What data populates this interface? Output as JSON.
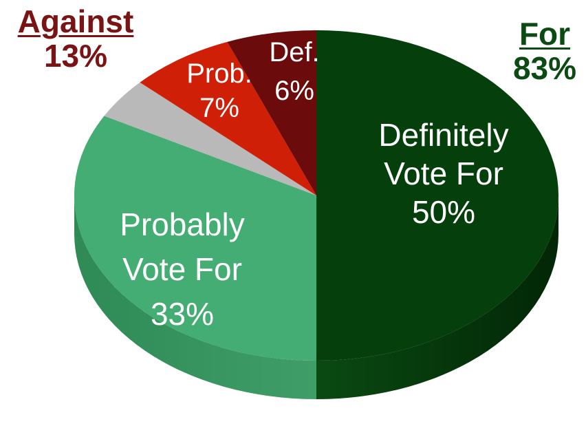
{
  "chart_data": {
    "type": "pie",
    "style": "3d",
    "slices": [
      {
        "key": "def_for",
        "label": [
          "Definitely",
          "Vote For"
        ],
        "value": 50,
        "value_label": "50%",
        "color": "#053f0b"
      },
      {
        "key": "prob_for",
        "label": [
          "Probably",
          "Vote For"
        ],
        "value": 33,
        "value_label": "33%",
        "color": "#44ad73"
      },
      {
        "key": "undecided",
        "label": [],
        "value": 4,
        "value_label": "",
        "color": "#b9b9b9"
      },
      {
        "key": "prob_against",
        "label": [
          "Prob."
        ],
        "value": 7,
        "value_label": "7%",
        "color": "#cf1f06"
      },
      {
        "key": "def_against",
        "label": [
          "Def."
        ],
        "value": 6,
        "value_label": "6%",
        "color": "#6b0b0b"
      }
    ],
    "groups": [
      {
        "key": "against",
        "title": "Against",
        "value_label": "13%",
        "color": "#7a1414"
      },
      {
        "key": "for",
        "title": "For",
        "value_label": "83%",
        "color": "#0c4a14"
      }
    ]
  }
}
